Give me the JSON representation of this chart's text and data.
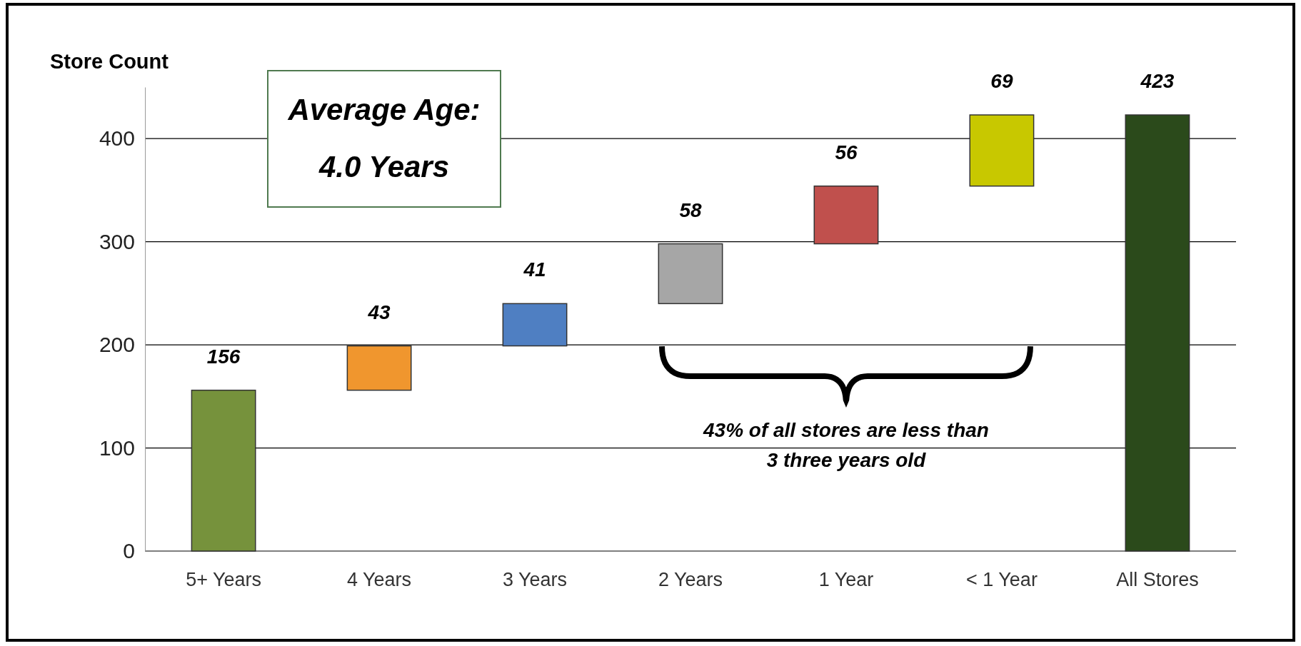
{
  "chart_data": {
    "type": "bar",
    "ylabel": "Store Count",
    "categories": [
      "5+ Years",
      "4 Years",
      "3 Years",
      "2 Years",
      "1 Year",
      "< 1 Year",
      "All Stores"
    ],
    "values": [
      156,
      43,
      41,
      58,
      56,
      69,
      423
    ],
    "base": [
      0,
      156,
      199,
      240,
      298,
      354,
      0
    ],
    "colors": [
      "#76923c",
      "#f0962e",
      "#4f7fc2",
      "#a6a6a6",
      "#c0504d",
      "#c8c800",
      "#2b4a1b"
    ],
    "ylim": [
      0,
      450
    ],
    "yticks": [
      0,
      100,
      200,
      300,
      400
    ],
    "grid": "y",
    "data_labels": true,
    "legend": false,
    "annotations": [
      "Average Age:\n4.0 Years",
      "43% of all stores are less than\n3 three years old"
    ]
  }
}
